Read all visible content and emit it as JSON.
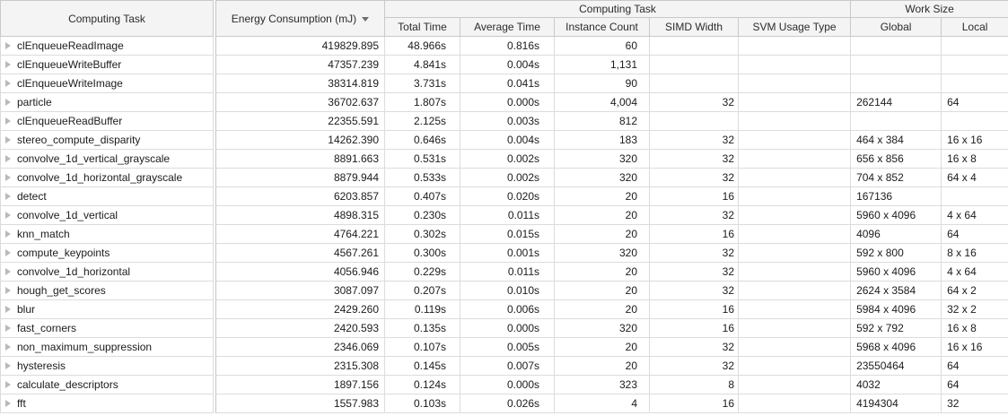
{
  "icons": {
    "row_expander": "triangle-right-icon",
    "energy_sort": "sort-descending-icon"
  },
  "colors": {
    "header_bg": "#f4f4f4",
    "header_border": "#c9c9c9",
    "grid_border": "#dcdcdc",
    "expander_gray": "#b9b9b9",
    "sort_arrow": "#6e6e6e",
    "text": "#1b1b1b"
  },
  "table": {
    "columns": {
      "task": "Computing Task",
      "energy": "Energy Consumption (mJ)",
      "group_computing_task": "Computing Task",
      "group_work_size": "Work Size",
      "total_time": "Total Time",
      "average_time": "Average Time",
      "instance_count": "Instance Count",
      "simd_width": "SIMD Width",
      "svm_usage_type": "SVM Usage Type",
      "global": "Global",
      "local": "Local"
    },
    "sort": {
      "column": "energy",
      "direction": "descending"
    },
    "rows": [
      {
        "name": "clEnqueueReadImage",
        "energy": "419829.895",
        "total_time": "48.966s",
        "avg_time": "0.816s",
        "instance_count": "60",
        "simd_width": "",
        "svm_usage": "",
        "global": "",
        "local": ""
      },
      {
        "name": "clEnqueueWriteBuffer",
        "energy": "47357.239",
        "total_time": "4.841s",
        "avg_time": "0.004s",
        "instance_count": "1,131",
        "simd_width": "",
        "svm_usage": "",
        "global": "",
        "local": ""
      },
      {
        "name": "clEnqueueWriteImage",
        "energy": "38314.819",
        "total_time": "3.731s",
        "avg_time": "0.041s",
        "instance_count": "90",
        "simd_width": "",
        "svm_usage": "",
        "global": "",
        "local": ""
      },
      {
        "name": "particle",
        "energy": "36702.637",
        "total_time": "1.807s",
        "avg_time": "0.000s",
        "instance_count": "4,004",
        "simd_width": "32",
        "svm_usage": "",
        "global": "262144",
        "local": "64"
      },
      {
        "name": "clEnqueueReadBuffer",
        "energy": "22355.591",
        "total_time": "2.125s",
        "avg_time": "0.003s",
        "instance_count": "812",
        "simd_width": "",
        "svm_usage": "",
        "global": "",
        "local": ""
      },
      {
        "name": "stereo_compute_disparity",
        "energy": "14262.390",
        "total_time": "0.646s",
        "avg_time": "0.004s",
        "instance_count": "183",
        "simd_width": "32",
        "svm_usage": "",
        "global": "464 x 384",
        "local": "16 x 16"
      },
      {
        "name": "convolve_1d_vertical_grayscale",
        "energy": "8891.663",
        "total_time": "0.531s",
        "avg_time": "0.002s",
        "instance_count": "320",
        "simd_width": "32",
        "svm_usage": "",
        "global": "656 x 856",
        "local": "16 x 8"
      },
      {
        "name": "convolve_1d_horizontal_grayscale",
        "energy": "8879.944",
        "total_time": "0.533s",
        "avg_time": "0.002s",
        "instance_count": "320",
        "simd_width": "32",
        "svm_usage": "",
        "global": "704 x 852",
        "local": "64 x 4"
      },
      {
        "name": "detect",
        "energy": "6203.857",
        "total_time": "0.407s",
        "avg_time": "0.020s",
        "instance_count": "20",
        "simd_width": "16",
        "svm_usage": "",
        "global": "167136",
        "local": ""
      },
      {
        "name": "convolve_1d_vertical",
        "energy": "4898.315",
        "total_time": "0.230s",
        "avg_time": "0.011s",
        "instance_count": "20",
        "simd_width": "32",
        "svm_usage": "",
        "global": "5960 x 4096",
        "local": "4 x 64"
      },
      {
        "name": "knn_match",
        "energy": "4764.221",
        "total_time": "0.302s",
        "avg_time": "0.015s",
        "instance_count": "20",
        "simd_width": "16",
        "svm_usage": "",
        "global": "4096",
        "local": "64"
      },
      {
        "name": "compute_keypoints",
        "energy": "4567.261",
        "total_time": "0.300s",
        "avg_time": "0.001s",
        "instance_count": "320",
        "simd_width": "32",
        "svm_usage": "",
        "global": "592 x 800",
        "local": "8 x 16"
      },
      {
        "name": "convolve_1d_horizontal",
        "energy": "4056.946",
        "total_time": "0.229s",
        "avg_time": "0.011s",
        "instance_count": "20",
        "simd_width": "32",
        "svm_usage": "",
        "global": "5960 x 4096",
        "local": "4 x 64"
      },
      {
        "name": "hough_get_scores",
        "energy": "3087.097",
        "total_time": "0.207s",
        "avg_time": "0.010s",
        "instance_count": "20",
        "simd_width": "32",
        "svm_usage": "",
        "global": "2624 x 3584",
        "local": "64 x 2"
      },
      {
        "name": "blur",
        "energy": "2429.260",
        "total_time": "0.119s",
        "avg_time": "0.006s",
        "instance_count": "20",
        "simd_width": "16",
        "svm_usage": "",
        "global": "5984 x 4096",
        "local": "32 x 2"
      },
      {
        "name": "fast_corners",
        "energy": "2420.593",
        "total_time": "0.135s",
        "avg_time": "0.000s",
        "instance_count": "320",
        "simd_width": "16",
        "svm_usage": "",
        "global": "592 x 792",
        "local": "16 x 8"
      },
      {
        "name": "non_maximum_suppression",
        "energy": "2346.069",
        "total_time": "0.107s",
        "avg_time": "0.005s",
        "instance_count": "20",
        "simd_width": "32",
        "svm_usage": "",
        "global": "5968 x 4096",
        "local": "16 x 16"
      },
      {
        "name": "hysteresis",
        "energy": "2315.308",
        "total_time": "0.145s",
        "avg_time": "0.007s",
        "instance_count": "20",
        "simd_width": "32",
        "svm_usage": "",
        "global": "23550464",
        "local": "64"
      },
      {
        "name": "calculate_descriptors",
        "energy": "1897.156",
        "total_time": "0.124s",
        "avg_time": "0.000s",
        "instance_count": "323",
        "simd_width": "8",
        "svm_usage": "",
        "global": "4032",
        "local": "64"
      },
      {
        "name": "fft",
        "energy": "1557.983",
        "total_time": "0.103s",
        "avg_time": "0.026s",
        "instance_count": "4",
        "simd_width": "16",
        "svm_usage": "",
        "global": "4194304",
        "local": "32"
      }
    ]
  }
}
